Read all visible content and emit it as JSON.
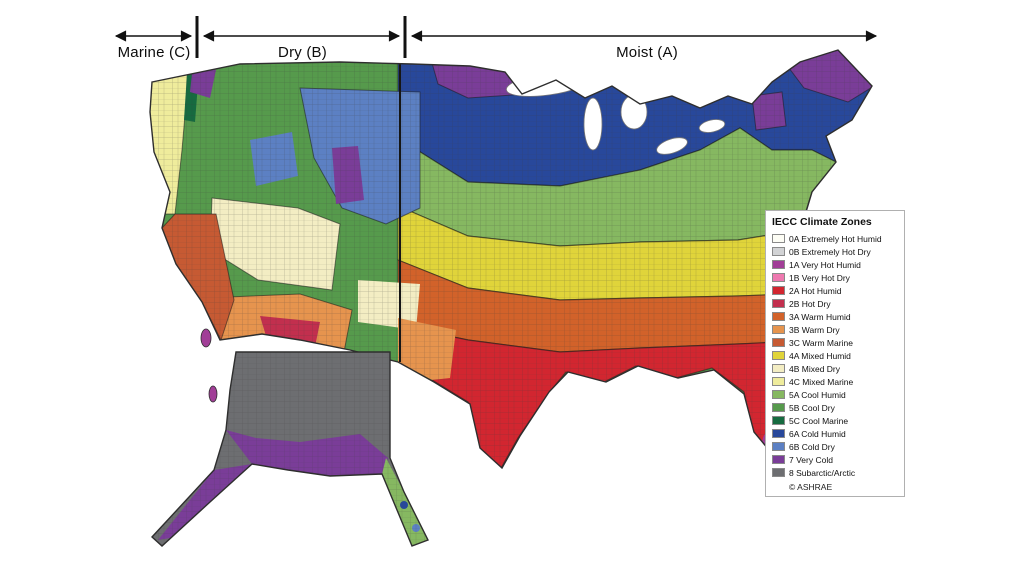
{
  "header": {
    "bands": [
      {
        "label": "Marine (C)"
      },
      {
        "label": "Dry (B)"
      },
      {
        "label": "Moist (A)"
      }
    ]
  },
  "legend": {
    "title": "IECC Climate Zones",
    "zones": [
      {
        "code": "0A",
        "label": "Extremely Hot Humid",
        "color": "#fdfdf5"
      },
      {
        "code": "0B",
        "label": "Extremely Hot Dry",
        "color": "#d2d3d5"
      },
      {
        "code": "1A",
        "label": "Very Hot Humid",
        "color": "#a13e97"
      },
      {
        "code": "1B",
        "label": "Very Hot Dry",
        "color": "#ee79b0"
      },
      {
        "code": "2A",
        "label": "Hot Humid",
        "color": "#d22630"
      },
      {
        "code": "2B",
        "label": "Hot Dry",
        "color": "#c22f4e"
      },
      {
        "code": "3A",
        "label": "Warm Humid",
        "color": "#d2622a"
      },
      {
        "code": "3B",
        "label": "Warm Dry",
        "color": "#e6944e"
      },
      {
        "code": "3C",
        "label": "Warm Marine",
        "color": "#c65a33"
      },
      {
        "code": "4A",
        "label": "Mixed Humid",
        "color": "#e0d43a"
      },
      {
        "code": "4B",
        "label": "Mixed Dry",
        "color": "#f3edc3"
      },
      {
        "code": "4C",
        "label": "Mixed Marine",
        "color": "#efec9c"
      },
      {
        "code": "5A",
        "label": "Cool Humid",
        "color": "#86b861"
      },
      {
        "code": "5B",
        "label": "Cool Dry",
        "color": "#569a4c"
      },
      {
        "code": "5C",
        "label": "Cool Marine",
        "color": "#166b40"
      },
      {
        "code": "6A",
        "label": "Cold Humid",
        "color": "#28489b"
      },
      {
        "code": "6B",
        "label": "Cold Dry",
        "color": "#5c80c3"
      },
      {
        "code": "7",
        "label": "Very Cold",
        "color": "#7a3d98"
      },
      {
        "code": "8",
        "label": "Subarctic/Arctic",
        "color": "#6d6e71"
      }
    ],
    "copyright": "© ASHRAE"
  }
}
